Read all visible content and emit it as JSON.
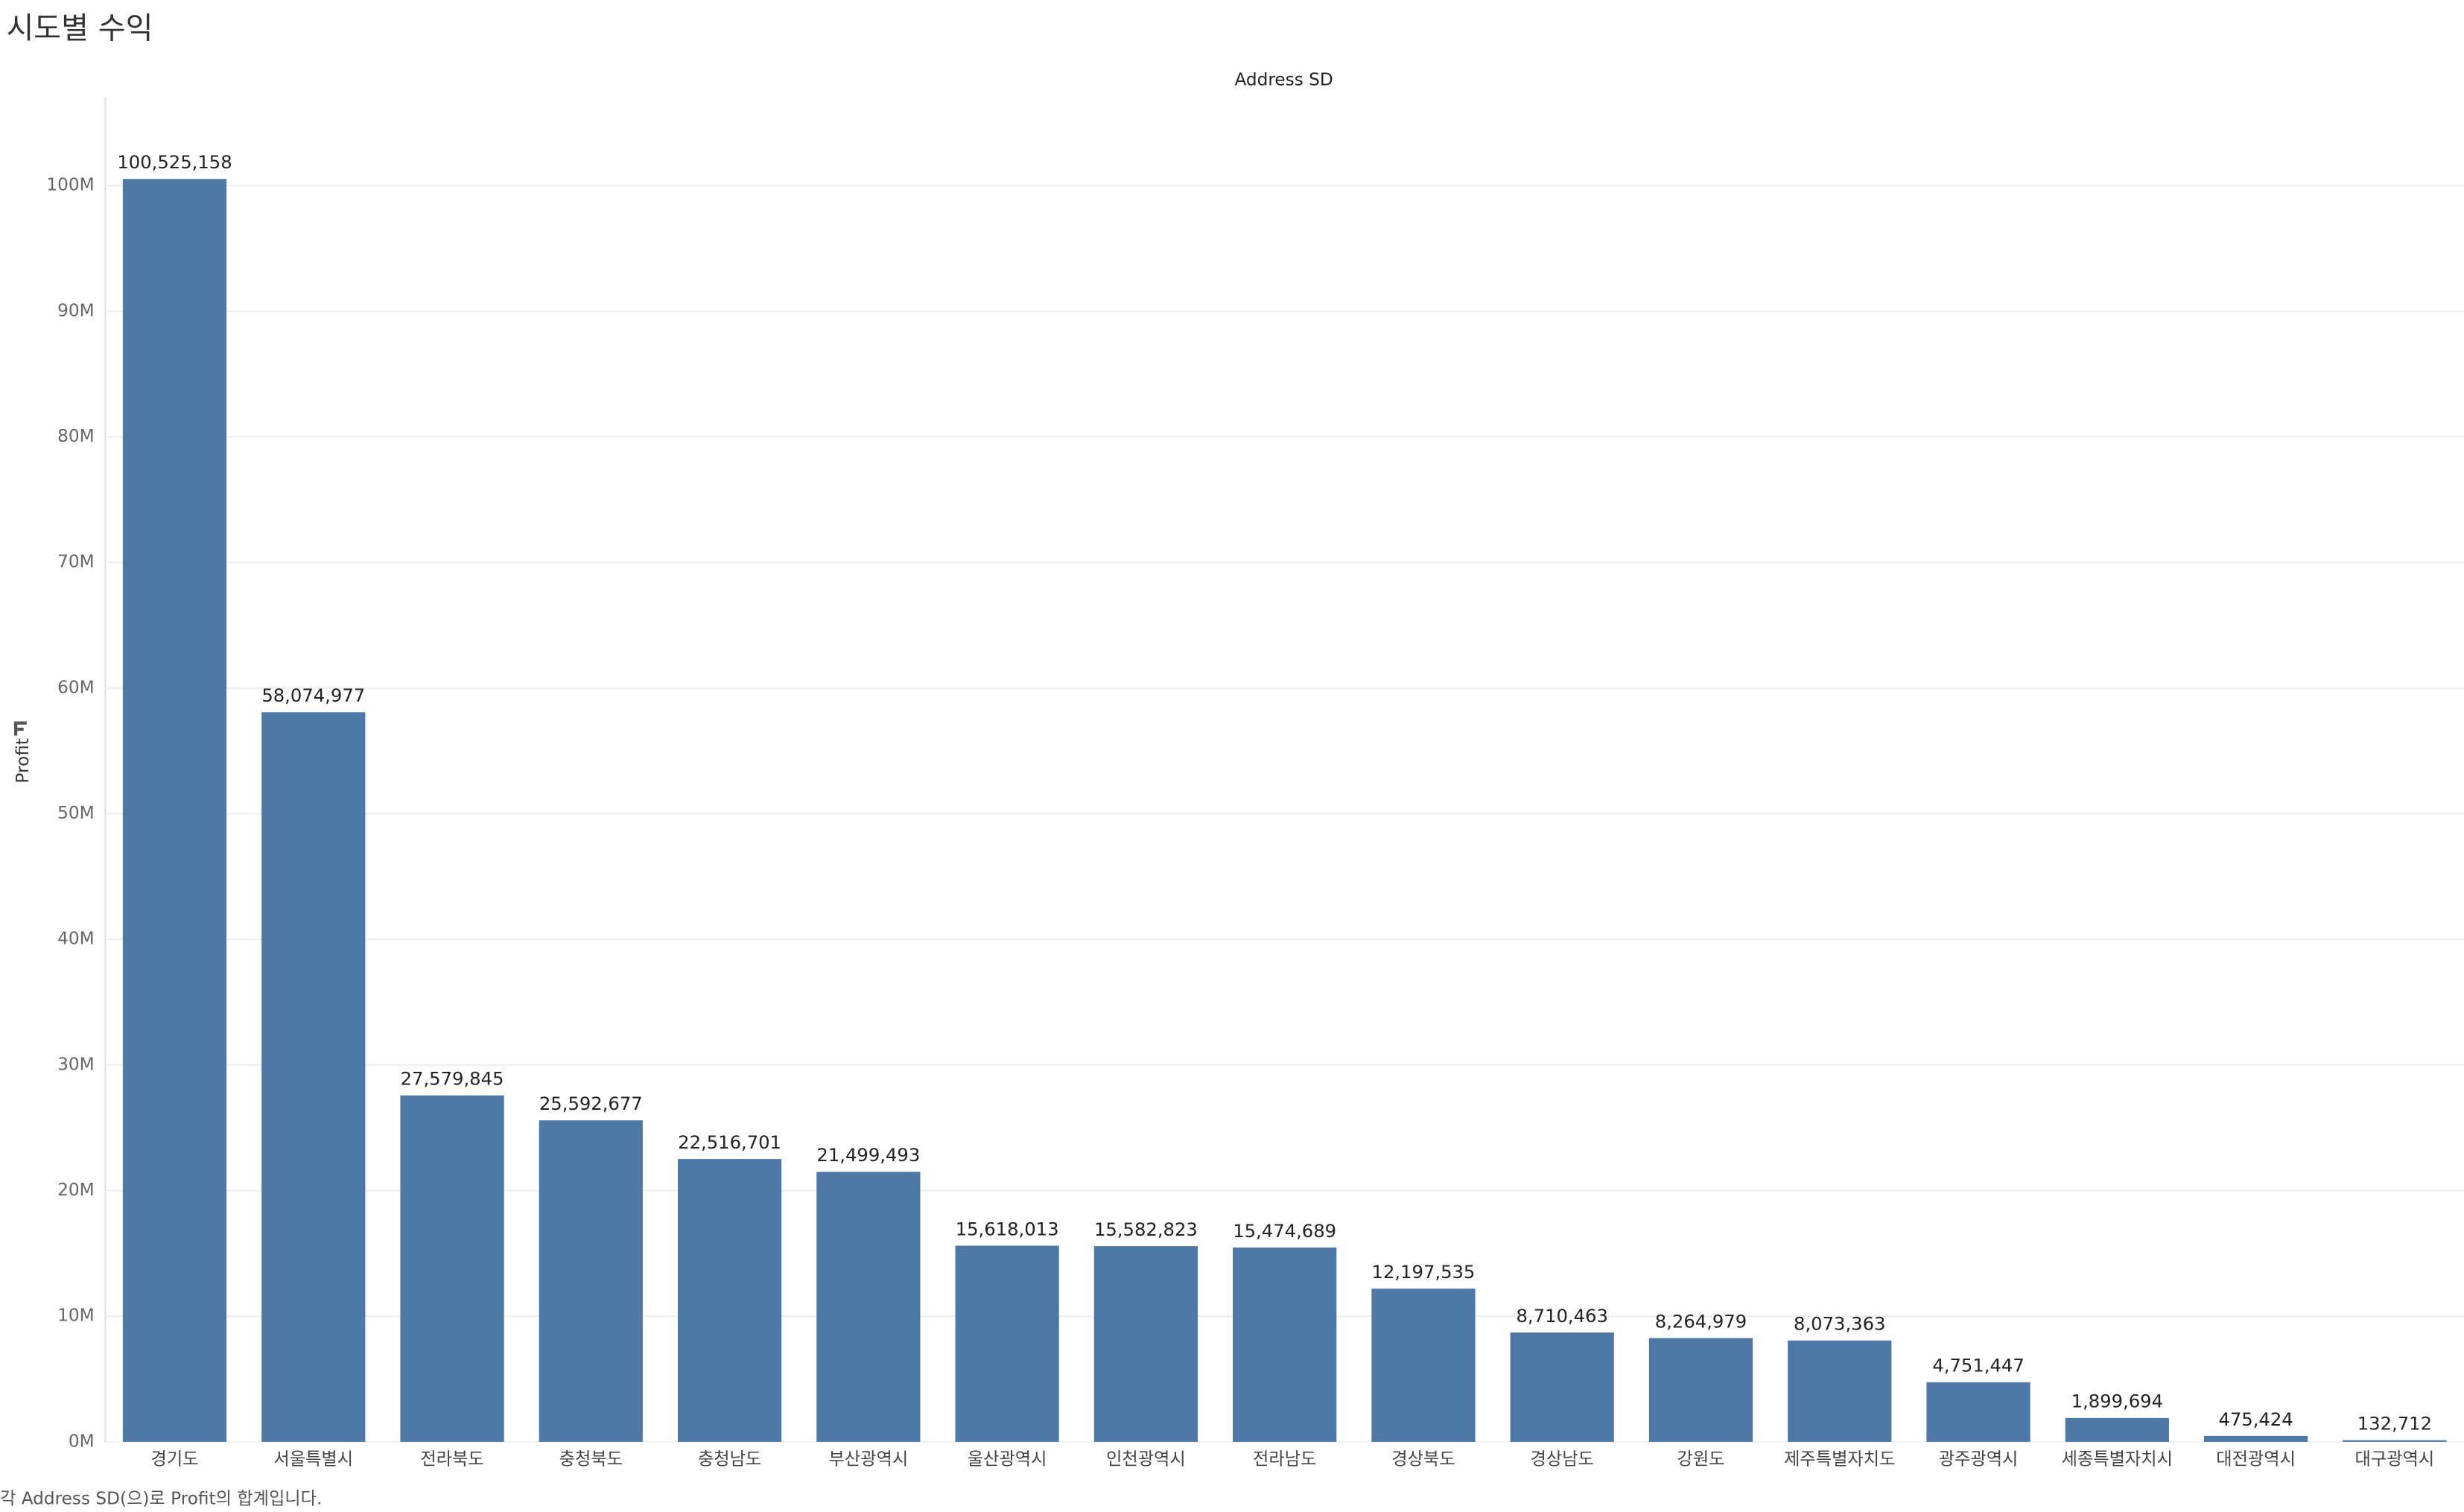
{
  "chart_data": {
    "type": "bar",
    "title": "시도별 수익",
    "x_label": "Address SD",
    "y_label": "Profit",
    "footnote": "각 Address SD(으)로 Profit의 합계입니다.",
    "categories": [
      "경기도",
      "서울특별시",
      "전라북도",
      "충청북도",
      "충청남도",
      "부산광역시",
      "울산광역시",
      "인천광역시",
      "전라남도",
      "경상북도",
      "경상남도",
      "강원도",
      "제주특별자치도",
      "광주광역시",
      "세종특별자치시",
      "대전광역시",
      "대구광역시"
    ],
    "values": [
      100525158,
      58074977,
      27579845,
      25592677,
      22516701,
      21499493,
      15618013,
      15582823,
      15474689,
      12197535,
      8710463,
      8264979,
      8073363,
      4751447,
      1899694,
      475424,
      132712
    ],
    "value_labels": [
      "100,525,158",
      "58,074,977",
      "27,579,845",
      "25,592,677",
      "22,516,701",
      "21,499,493",
      "15,618,013",
      "15,582,823",
      "15,474,689",
      "12,197,535",
      "8,710,463",
      "8,264,979",
      "8,073,363",
      "4,751,447",
      "1,899,694",
      "475,424",
      "132,712"
    ],
    "color": "#4e79a7",
    "ylim": [
      0,
      107000000
    ],
    "yticks": [
      {
        "value": 0,
        "label": "0M"
      },
      {
        "value": 10000000,
        "label": "10M"
      },
      {
        "value": 20000000,
        "label": "20M"
      },
      {
        "value": 30000000,
        "label": "30M"
      },
      {
        "value": 40000000,
        "label": "40M"
      },
      {
        "value": 50000000,
        "label": "50M"
      },
      {
        "value": 60000000,
        "label": "60M"
      },
      {
        "value": 70000000,
        "label": "70M"
      },
      {
        "value": 80000000,
        "label": "80M"
      },
      {
        "value": 90000000,
        "label": "90M"
      },
      {
        "value": 100000000,
        "label": "100M"
      }
    ],
    "grid": true
  }
}
